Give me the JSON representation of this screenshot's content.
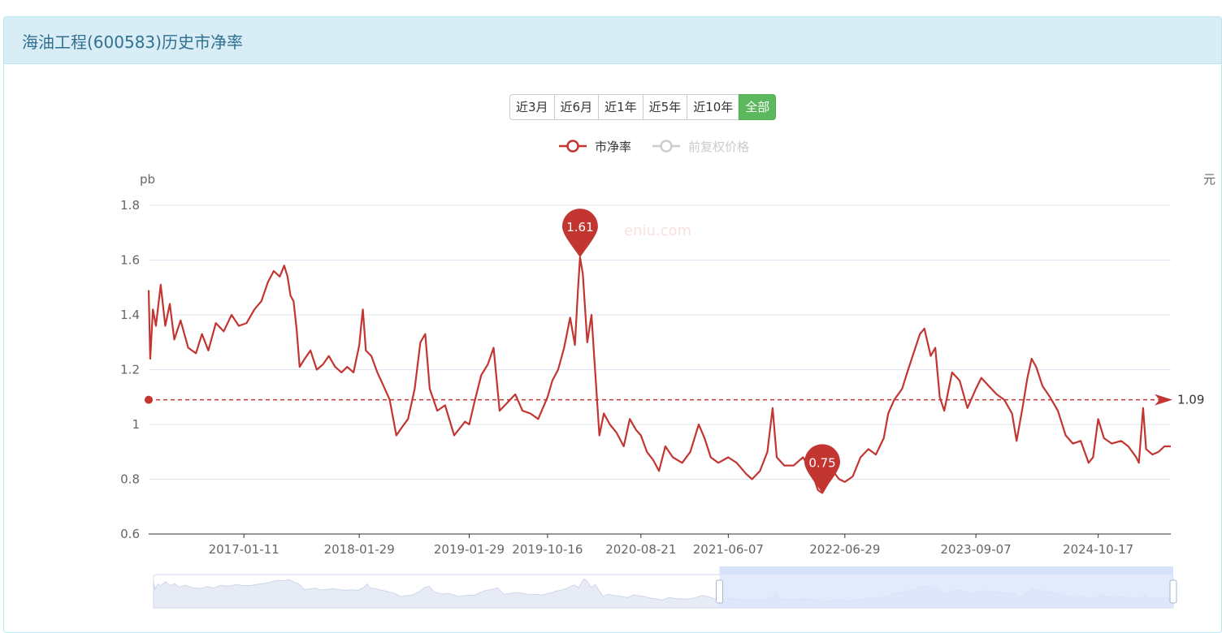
{
  "panel": {
    "title": "海油工程(600583)历史市净率"
  },
  "range_buttons": [
    {
      "label": "近3月",
      "active": false
    },
    {
      "label": "近6月",
      "active": false
    },
    {
      "label": "近1年",
      "active": false
    },
    {
      "label": "近5年",
      "active": false
    },
    {
      "label": "近10年",
      "active": false
    },
    {
      "label": "全部",
      "active": true
    }
  ],
  "legend": [
    {
      "label": "市净率",
      "color": "#c23531",
      "enabled": true
    },
    {
      "label": "前复权价格",
      "color": "#cccccc",
      "enabled": false
    }
  ],
  "watermark": "eniu.com",
  "colors": {
    "series": "#c23531",
    "axis": "#333333",
    "grid": "#e0e6f1",
    "zoom_fill": "#dbe5fb"
  },
  "chart_data": {
    "type": "line",
    "ylabel": "pb",
    "y2label": "元",
    "ylim": [
      0.6,
      1.8
    ],
    "yticks": [
      "0.6",
      "0.8",
      "1",
      "1.2",
      "1.4",
      "1.6",
      "1.8"
    ],
    "xticks": [
      "2017-01-11",
      "2018-01-29",
      "2019-01-29",
      "2019-10-16",
      "2020-08-21",
      "2021-06-07",
      "2022-06-29",
      "2023-09-07",
      "2024-10-17"
    ],
    "x_range": [
      "2016-03-01",
      "2025-06-15"
    ],
    "series": [
      {
        "name": "市净率",
        "points": [
          [
            "2016-03-01",
            1.49
          ],
          [
            "2016-03-06",
            1.24
          ],
          [
            "2016-03-15",
            1.42
          ],
          [
            "2016-03-25",
            1.36
          ],
          [
            "2016-04-10",
            1.51
          ],
          [
            "2016-04-25",
            1.36
          ],
          [
            "2016-05-10",
            1.44
          ],
          [
            "2016-05-25",
            1.31
          ],
          [
            "2016-06-15",
            1.38
          ],
          [
            "2016-07-10",
            1.28
          ],
          [
            "2016-08-05",
            1.26
          ],
          [
            "2016-08-25",
            1.33
          ],
          [
            "2016-09-15",
            1.27
          ],
          [
            "2016-10-10",
            1.37
          ],
          [
            "2016-11-05",
            1.34
          ],
          [
            "2016-12-01",
            1.4
          ],
          [
            "2016-12-25",
            1.36
          ],
          [
            "2017-01-20",
            1.37
          ],
          [
            "2017-02-15",
            1.42
          ],
          [
            "2017-03-10",
            1.45
          ],
          [
            "2017-04-01",
            1.52
          ],
          [
            "2017-04-20",
            1.56
          ],
          [
            "2017-05-10",
            1.54
          ],
          [
            "2017-05-25",
            1.58
          ],
          [
            "2017-06-05",
            1.54
          ],
          [
            "2017-06-15",
            1.47
          ],
          [
            "2017-06-25",
            1.45
          ],
          [
            "2017-07-05",
            1.35
          ],
          [
            "2017-07-15",
            1.21
          ],
          [
            "2017-08-01",
            1.24
          ],
          [
            "2017-08-20",
            1.27
          ],
          [
            "2017-09-10",
            1.2
          ],
          [
            "2017-10-01",
            1.22
          ],
          [
            "2017-10-20",
            1.25
          ],
          [
            "2017-11-10",
            1.21
          ],
          [
            "2017-12-01",
            1.19
          ],
          [
            "2017-12-20",
            1.21
          ],
          [
            "2018-01-10",
            1.19
          ],
          [
            "2018-01-29",
            1.29
          ],
          [
            "2018-02-05",
            1.37
          ],
          [
            "2018-02-10",
            1.42
          ],
          [
            "2018-02-20",
            1.27
          ],
          [
            "2018-03-10",
            1.25
          ],
          [
            "2018-03-30",
            1.19
          ],
          [
            "2018-04-20",
            1.14
          ],
          [
            "2018-05-10",
            1.09
          ],
          [
            "2018-06-01",
            0.96
          ],
          [
            "2018-06-20",
            0.99
          ],
          [
            "2018-07-10",
            1.02
          ],
          [
            "2018-08-01",
            1.13
          ],
          [
            "2018-08-20",
            1.3
          ],
          [
            "2018-09-05",
            1.33
          ],
          [
            "2018-09-20",
            1.13
          ],
          [
            "2018-10-15",
            1.05
          ],
          [
            "2018-11-10",
            1.07
          ],
          [
            "2018-12-10",
            0.96
          ],
          [
            "2019-01-15",
            1.01
          ],
          [
            "2019-01-29",
            1.0
          ],
          [
            "2019-02-15",
            1.08
          ],
          [
            "2019-03-10",
            1.18
          ],
          [
            "2019-04-01",
            1.22
          ],
          [
            "2019-04-20",
            1.28
          ],
          [
            "2019-05-10",
            1.05
          ],
          [
            "2019-06-05",
            1.08
          ],
          [
            "2019-07-01",
            1.11
          ],
          [
            "2019-07-25",
            1.05
          ],
          [
            "2019-08-20",
            1.04
          ],
          [
            "2019-09-15",
            1.02
          ],
          [
            "2019-10-16",
            1.1
          ],
          [
            "2019-11-01",
            1.16
          ],
          [
            "2019-11-20",
            1.2
          ],
          [
            "2019-12-10",
            1.28
          ],
          [
            "2019-12-30",
            1.39
          ],
          [
            "2020-01-15",
            1.29
          ],
          [
            "2020-01-25",
            1.49
          ],
          [
            "2020-02-01",
            1.61
          ],
          [
            "2020-02-10",
            1.55
          ],
          [
            "2020-02-25",
            1.3
          ],
          [
            "2020-03-10",
            1.4
          ],
          [
            "2020-03-20",
            1.23
          ],
          [
            "2020-04-05",
            0.96
          ],
          [
            "2020-04-20",
            1.04
          ],
          [
            "2020-05-10",
            1.0
          ],
          [
            "2020-06-01",
            0.97
          ],
          [
            "2020-06-25",
            0.92
          ],
          [
            "2020-07-15",
            1.02
          ],
          [
            "2020-08-05",
            0.98
          ],
          [
            "2020-08-21",
            0.96
          ],
          [
            "2020-09-10",
            0.9
          ],
          [
            "2020-10-01",
            0.87
          ],
          [
            "2020-10-20",
            0.83
          ],
          [
            "2020-11-10",
            0.92
          ],
          [
            "2020-12-05",
            0.88
          ],
          [
            "2021-01-05",
            0.86
          ],
          [
            "2021-02-01",
            0.9
          ],
          [
            "2021-03-01",
            1.0
          ],
          [
            "2021-03-20",
            0.95
          ],
          [
            "2021-04-10",
            0.88
          ],
          [
            "2021-05-05",
            0.86
          ],
          [
            "2021-06-07",
            0.88
          ],
          [
            "2021-07-05",
            0.86
          ],
          [
            "2021-08-05",
            0.82
          ],
          [
            "2021-08-25",
            0.8
          ],
          [
            "2021-09-20",
            0.83
          ],
          [
            "2021-10-15",
            0.9
          ],
          [
            "2021-11-01",
            1.06
          ],
          [
            "2021-11-15",
            0.88
          ],
          [
            "2021-12-10",
            0.85
          ],
          [
            "2022-01-10",
            0.85
          ],
          [
            "2022-02-10",
            0.88
          ],
          [
            "2022-03-10",
            0.83
          ],
          [
            "2022-04-01",
            0.76
          ],
          [
            "2022-04-15",
            0.75
          ],
          [
            "2022-05-01",
            0.78
          ],
          [
            "2022-05-20",
            0.83
          ],
          [
            "2022-06-10",
            0.8
          ],
          [
            "2022-06-29",
            0.79
          ],
          [
            "2022-07-25",
            0.81
          ],
          [
            "2022-08-20",
            0.88
          ],
          [
            "2022-09-15",
            0.91
          ],
          [
            "2022-10-10",
            0.89
          ],
          [
            "2022-11-05",
            0.95
          ],
          [
            "2022-11-20",
            1.04
          ],
          [
            "2022-12-10",
            1.09
          ],
          [
            "2023-01-05",
            1.13
          ],
          [
            "2023-01-25",
            1.2
          ],
          [
            "2023-02-15",
            1.27
          ],
          [
            "2023-03-05",
            1.33
          ],
          [
            "2023-03-20",
            1.35
          ],
          [
            "2023-04-10",
            1.25
          ],
          [
            "2023-04-25",
            1.28
          ],
          [
            "2023-05-10",
            1.1
          ],
          [
            "2023-05-25",
            1.05
          ],
          [
            "2023-06-20",
            1.19
          ],
          [
            "2023-07-15",
            1.16
          ],
          [
            "2023-08-10",
            1.06
          ],
          [
            "2023-09-07",
            1.13
          ],
          [
            "2023-09-25",
            1.17
          ],
          [
            "2023-10-20",
            1.14
          ],
          [
            "2023-11-15",
            1.11
          ],
          [
            "2023-12-10",
            1.09
          ],
          [
            "2024-01-05",
            1.04
          ],
          [
            "2024-01-20",
            0.94
          ],
          [
            "2024-02-10",
            1.07
          ],
          [
            "2024-02-25",
            1.17
          ],
          [
            "2024-03-10",
            1.24
          ],
          [
            "2024-03-25",
            1.21
          ],
          [
            "2024-04-15",
            1.14
          ],
          [
            "2024-05-10",
            1.1
          ],
          [
            "2024-06-05",
            1.05
          ],
          [
            "2024-07-01",
            0.96
          ],
          [
            "2024-07-25",
            0.93
          ],
          [
            "2024-08-20",
            0.94
          ],
          [
            "2024-09-15",
            0.86
          ],
          [
            "2024-09-30",
            0.88
          ],
          [
            "2024-10-17",
            1.02
          ],
          [
            "2024-11-05",
            0.95
          ],
          [
            "2024-12-01",
            0.93
          ],
          [
            "2025-01-01",
            0.94
          ],
          [
            "2025-01-25",
            0.92
          ],
          [
            "2025-02-20",
            0.88
          ],
          [
            "2025-03-01",
            0.86
          ],
          [
            "2025-03-15",
            1.06
          ],
          [
            "2025-03-25",
            0.91
          ],
          [
            "2025-04-15",
            0.89
          ],
          [
            "2025-05-05",
            0.9
          ],
          [
            "2025-05-25",
            0.92
          ],
          [
            "2025-06-15",
            0.92
          ]
        ]
      }
    ],
    "mark_points": [
      {
        "label": "1.61",
        "x": "2020-02-01",
        "y": 1.61
      },
      {
        "label": "0.75",
        "x": "2022-04-15",
        "y": 0.75
      }
    ],
    "mark_line": {
      "label": "1.09",
      "y": 1.09
    },
    "data_zoom": {
      "start_percent": 55.5,
      "end_percent": 100
    }
  }
}
